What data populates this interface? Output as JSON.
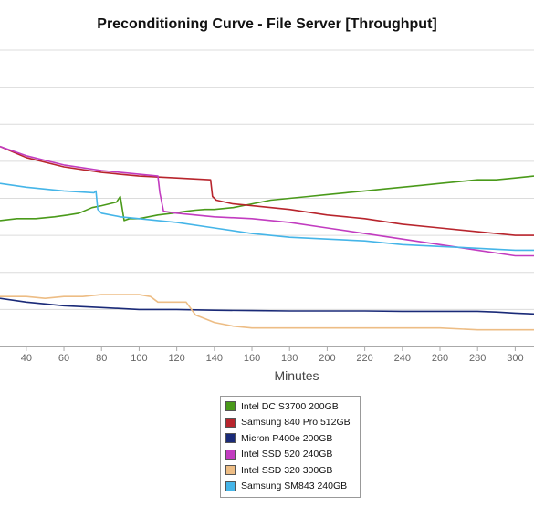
{
  "chart_data": {
    "type": "line",
    "title": "Preconditioning Curve - File Server [Throughput]",
    "xlabel": "Minutes",
    "ylabel": "",
    "xlim": [
      26,
      310
    ],
    "ylim": [
      0,
      8
    ],
    "x_ticks": [
      40,
      60,
      80,
      100,
      120,
      140,
      160,
      180,
      200,
      220,
      240,
      260,
      280,
      300
    ],
    "grid": true,
    "legend_position": "bottom-center",
    "series": [
      {
        "name": "Intel DC S3700 200GB",
        "color": "#4a9a1a",
        "x": [
          26,
          35,
          45,
          55,
          62,
          68,
          75,
          80,
          84,
          88,
          90,
          92,
          95,
          100,
          105,
          110,
          118,
          125,
          130,
          135,
          140,
          150,
          160,
          170,
          180,
          190,
          200,
          210,
          220,
          230,
          240,
          250,
          260,
          270,
          280,
          290,
          300,
          310
        ],
        "y": [
          3.4,
          3.45,
          3.45,
          3.5,
          3.55,
          3.6,
          3.75,
          3.8,
          3.85,
          3.9,
          4.05,
          3.4,
          3.45,
          3.45,
          3.5,
          3.55,
          3.6,
          3.65,
          3.68,
          3.7,
          3.7,
          3.75,
          3.85,
          3.95,
          4.0,
          4.05,
          4.1,
          4.15,
          4.2,
          4.25,
          4.3,
          4.35,
          4.4,
          4.45,
          4.5,
          4.5,
          4.55,
          4.6
        ]
      },
      {
        "name": "Samsung 840 Pro 512GB",
        "color": "#b8252d",
        "x": [
          26,
          40,
          60,
          80,
          100,
          120,
          138,
          139,
          141,
          150,
          160,
          180,
          200,
          220,
          240,
          260,
          280,
          300,
          310
        ],
        "y": [
          5.4,
          5.1,
          4.85,
          4.7,
          4.6,
          4.55,
          4.5,
          4.05,
          3.95,
          3.85,
          3.8,
          3.7,
          3.55,
          3.45,
          3.3,
          3.2,
          3.1,
          3.0,
          3.0
        ]
      },
      {
        "name": "Micron P400e 200GB",
        "color": "#1a2a78",
        "x": [
          26,
          40,
          60,
          80,
          100,
          120,
          140,
          160,
          180,
          200,
          220,
          240,
          260,
          280,
          290,
          300,
          310
        ],
        "y": [
          1.3,
          1.2,
          1.1,
          1.05,
          1.0,
          1.0,
          0.98,
          0.97,
          0.96,
          0.96,
          0.96,
          0.95,
          0.95,
          0.95,
          0.93,
          0.9,
          0.88
        ]
      },
      {
        "name": "Intel SSD 520 240GB",
        "color": "#c23cc0",
        "x": [
          26,
          40,
          60,
          80,
          100,
          110,
          111,
          113,
          120,
          140,
          160,
          180,
          200,
          220,
          240,
          260,
          280,
          300,
          310
        ],
        "y": [
          5.4,
          5.15,
          4.9,
          4.75,
          4.65,
          4.6,
          4.15,
          3.65,
          3.6,
          3.5,
          3.45,
          3.35,
          3.2,
          3.05,
          2.9,
          2.75,
          2.6,
          2.45,
          2.45
        ]
      },
      {
        "name": "Intel SSD 320 300GB",
        "color": "#edbd85",
        "x": [
          26,
          40,
          50,
          60,
          70,
          80,
          90,
          100,
          106,
          110,
          120,
          125,
          130,
          135,
          140,
          150,
          160,
          180,
          200,
          220,
          240,
          260,
          280,
          300,
          310
        ],
        "y": [
          1.35,
          1.35,
          1.3,
          1.35,
          1.35,
          1.4,
          1.4,
          1.4,
          1.35,
          1.2,
          1.2,
          1.2,
          0.85,
          0.75,
          0.65,
          0.55,
          0.5,
          0.5,
          0.5,
          0.5,
          0.5,
          0.5,
          0.45,
          0.45,
          0.45
        ]
      },
      {
        "name": "Samsung SM843 240GB",
        "color": "#45b5e8",
        "x": [
          26,
          40,
          60,
          76,
          77,
          78,
          80,
          90,
          100,
          110,
          120,
          140,
          160,
          180,
          200,
          220,
          240,
          260,
          280,
          300,
          310
        ],
        "y": [
          4.4,
          4.3,
          4.2,
          4.15,
          4.2,
          3.7,
          3.6,
          3.5,
          3.45,
          3.4,
          3.35,
          3.2,
          3.05,
          2.95,
          2.9,
          2.85,
          2.75,
          2.7,
          2.65,
          2.6,
          2.6
        ]
      }
    ]
  }
}
